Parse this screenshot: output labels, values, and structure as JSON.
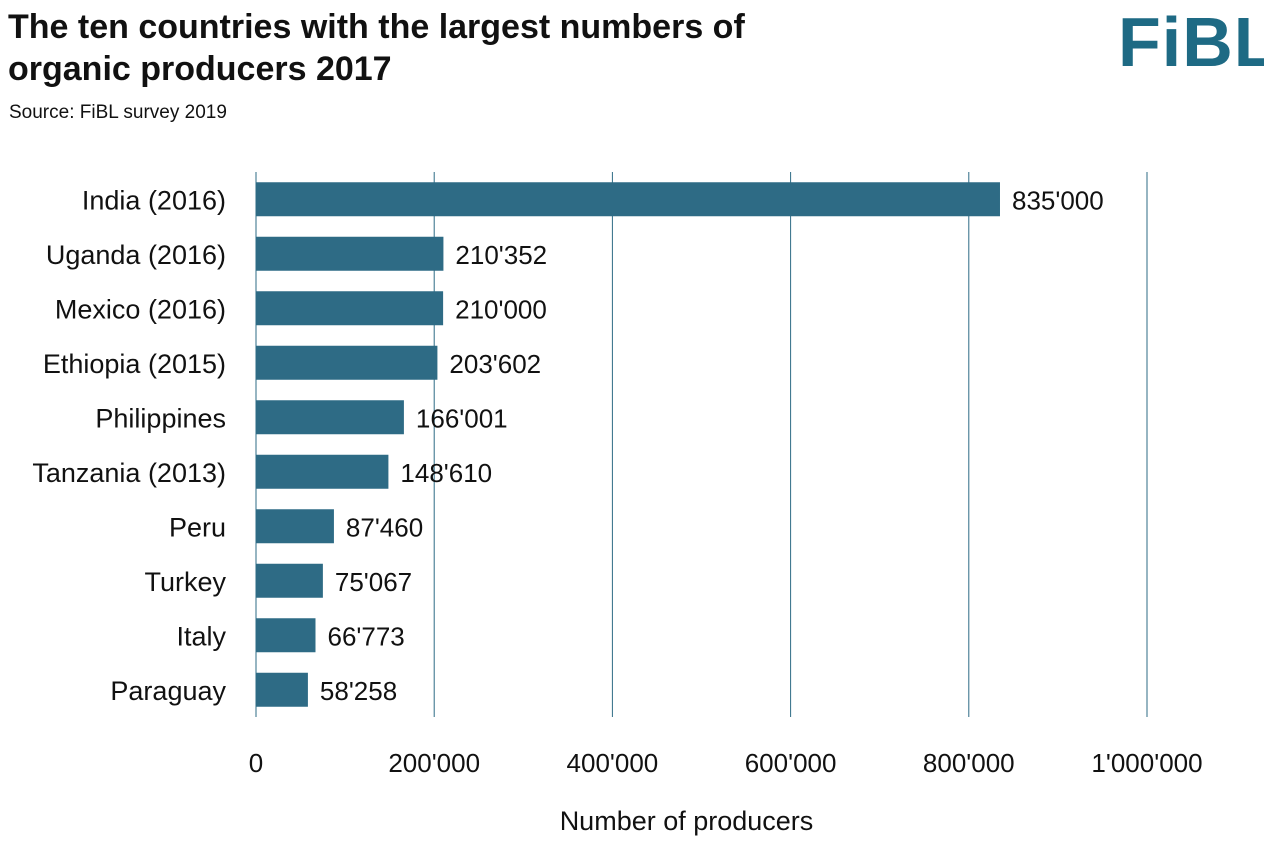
{
  "header": {
    "title_line1": "The ten countries with the largest numbers of",
    "title_line2": "organic producers 2017",
    "source": "Source: FiBL survey 2019",
    "logo_text": "FiBL"
  },
  "colors": {
    "bar": "#2e6b85",
    "grid": "#2e6b85",
    "logo": "#1e6a84"
  },
  "chart_data": {
    "type": "bar",
    "orientation": "horizontal",
    "title": "The ten countries with the largest numbers of organic producers 2017",
    "subtitle": "Source: FiBL survey 2019",
    "xlabel": "Number of producers",
    "ylabel": "",
    "xlim": [
      0,
      1000000
    ],
    "x_ticks": [
      0,
      200000,
      400000,
      600000,
      800000,
      1000000
    ],
    "x_tick_labels": [
      "0",
      "200'000",
      "400'000",
      "600'000",
      "800'000",
      "1'000'000"
    ],
    "grid": "vertical",
    "legend": "none",
    "categories": [
      "India (2016)",
      "Uganda (2016)",
      "Mexico (2016)",
      "Ethiopia (2015)",
      "Philippines",
      "Tanzania (2013)",
      "Peru",
      "Turkey",
      "Italy",
      "Paraguay"
    ],
    "values": [
      835000,
      210352,
      210000,
      203602,
      166001,
      148610,
      87460,
      75067,
      66773,
      58258
    ],
    "value_labels": [
      "835'000",
      "210'352",
      "210'000",
      "203'602",
      "166'001",
      "148'610",
      "87'460",
      "75'067",
      "66'773",
      "58'258"
    ]
  }
}
